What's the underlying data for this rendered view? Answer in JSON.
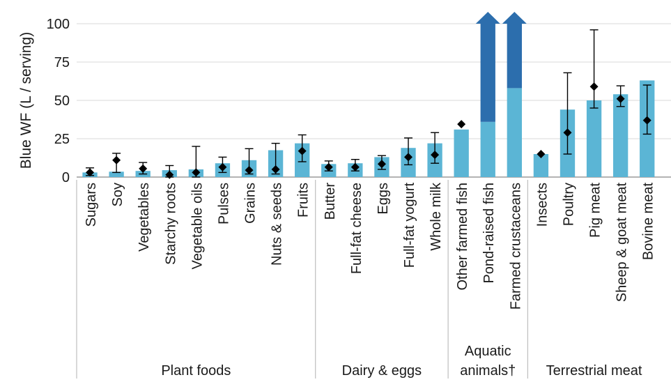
{
  "chart_data": {
    "type": "bar",
    "ylabel": "Blue WF (L / serving)",
    "xlabel": "",
    "ylim": [
      0,
      100
    ],
    "yticks": [
      0,
      25,
      50,
      75,
      100
    ],
    "grid": "horizontal",
    "colors": {
      "bar": "#5BB5D5",
      "overflow": "#2C6EAD",
      "marker": "#000000"
    },
    "categories": [
      "Sugars",
      "Soy",
      "Vegetables",
      "Starchy roots",
      "Vegetable oils",
      "Pulses",
      "Grains",
      "Nuts & seeds",
      "Fruits",
      "Butter",
      "Full-fat cheese",
      "Eggs",
      "Full-fat yogurt",
      "Whole milk",
      "Other farmed fish",
      "Pond-raised fish",
      "Farmed crustaceans",
      "Insects",
      "Poultry",
      "Pig meat",
      "Sheep & goat meat",
      "Bovine meat"
    ],
    "series": [
      {
        "values": [
          3,
          3.5,
          4,
          4.5,
          5,
          9,
          11,
          17.5,
          22,
          8.5,
          9,
          13,
          19,
          22,
          31,
          36,
          58,
          15,
          44,
          50,
          54,
          63
        ]
      },
      {
        "values": [
          3,
          11,
          5.5,
          1.5,
          3,
          6.5,
          4.5,
          5,
          17,
          6.5,
          6.5,
          8.5,
          13,
          14.5,
          34.5,
          null,
          null,
          15,
          29,
          59,
          51,
          37
        ]
      }
    ],
    "error_low": [
      1,
      3,
      2,
      0,
      0,
      3,
      2,
      2,
      10,
      4,
      4,
      5,
      8,
      9,
      null,
      null,
      null,
      null,
      15,
      45,
      46,
      28
    ],
    "error_high": [
      6,
      15.5,
      9.5,
      7.5,
      20,
      13,
      18.5,
      22,
      27.5,
      10.5,
      11.5,
      14,
      25.5,
      29,
      null,
      null,
      null,
      null,
      68,
      96,
      59.5,
      60
    ],
    "overflow_arrows": [
      "Pond-raised fish",
      "Farmed crustaceans"
    ],
    "groups": [
      {
        "label": "Plant foods",
        "start": 0,
        "end": 8
      },
      {
        "label": "Dairy & eggs",
        "start": 9,
        "end": 13
      },
      {
        "label": "Aquatic animals†",
        "start": 14,
        "end": 16
      },
      {
        "label": "Terrestrial meat",
        "start": 17,
        "end": 21
      }
    ]
  }
}
